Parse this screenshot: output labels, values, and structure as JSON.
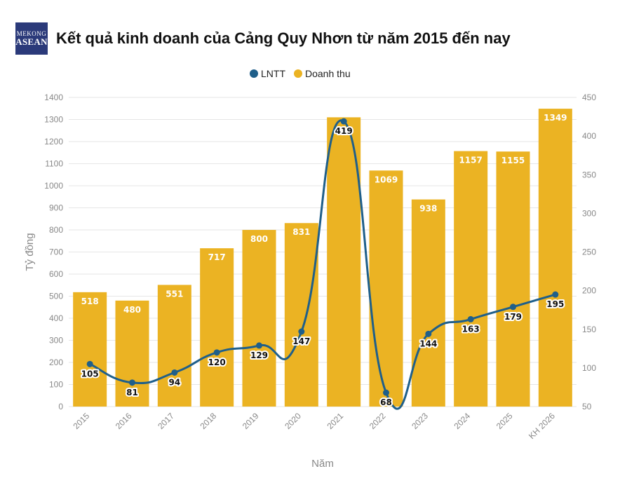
{
  "header": {
    "logo_line1": "MEKONG",
    "logo_line2": "ASEAN",
    "title": "Kết quả kinh doanh của Cảng Quy Nhơn từ năm 2015 đến nay"
  },
  "colors": {
    "bar": "#ebb323",
    "line": "#1f5f8a",
    "grid": "#e6e6e6",
    "axis_text": "#888888"
  },
  "chart_data": {
    "type": "bar",
    "categories": [
      "2015",
      "2016",
      "2017",
      "2018",
      "2019",
      "2020",
      "2021",
      "2022",
      "2023",
      "2024",
      "2025",
      "KH 2026"
    ],
    "series": [
      {
        "name": "Doanh thu",
        "type": "bar",
        "axis": "left",
        "values": [
          518,
          480,
          551,
          717,
          800,
          831,
          1310,
          1069,
          938,
          1157,
          1155,
          1349
        ]
      },
      {
        "name": "LNTT",
        "type": "line",
        "axis": "right",
        "values": [
          105,
          81,
          94,
          120,
          129,
          147,
          419,
          68,
          144,
          163,
          179,
          195
        ]
      }
    ],
    "bar_labels": [
      "518",
      "480",
      "551",
      "717",
      "800",
      "831",
      "",
      "1069",
      "938",
      "1157",
      "1155",
      "1349"
    ],
    "line_labels": [
      "105",
      "81",
      "94",
      "120",
      "129",
      "147",
      "419",
      "68",
      "144",
      "163",
      "179",
      "195"
    ],
    "xlabel": "Năm",
    "ylabel": "Tỷ đồng",
    "ylim": [
      0,
      1400
    ],
    "y2lim": [
      50,
      450
    ],
    "yticks": [
      0,
      100,
      200,
      300,
      400,
      500,
      600,
      700,
      800,
      900,
      1000,
      1100,
      1200,
      1300,
      1400
    ],
    "y2ticks": [
      50,
      100,
      150,
      200,
      250,
      300,
      350,
      400,
      450
    ],
    "legend": {
      "position": "top-center",
      "entries": [
        "LNTT",
        "Doanh thu"
      ]
    },
    "grid": true,
    "x_tick_rotation": "diagonal"
  }
}
